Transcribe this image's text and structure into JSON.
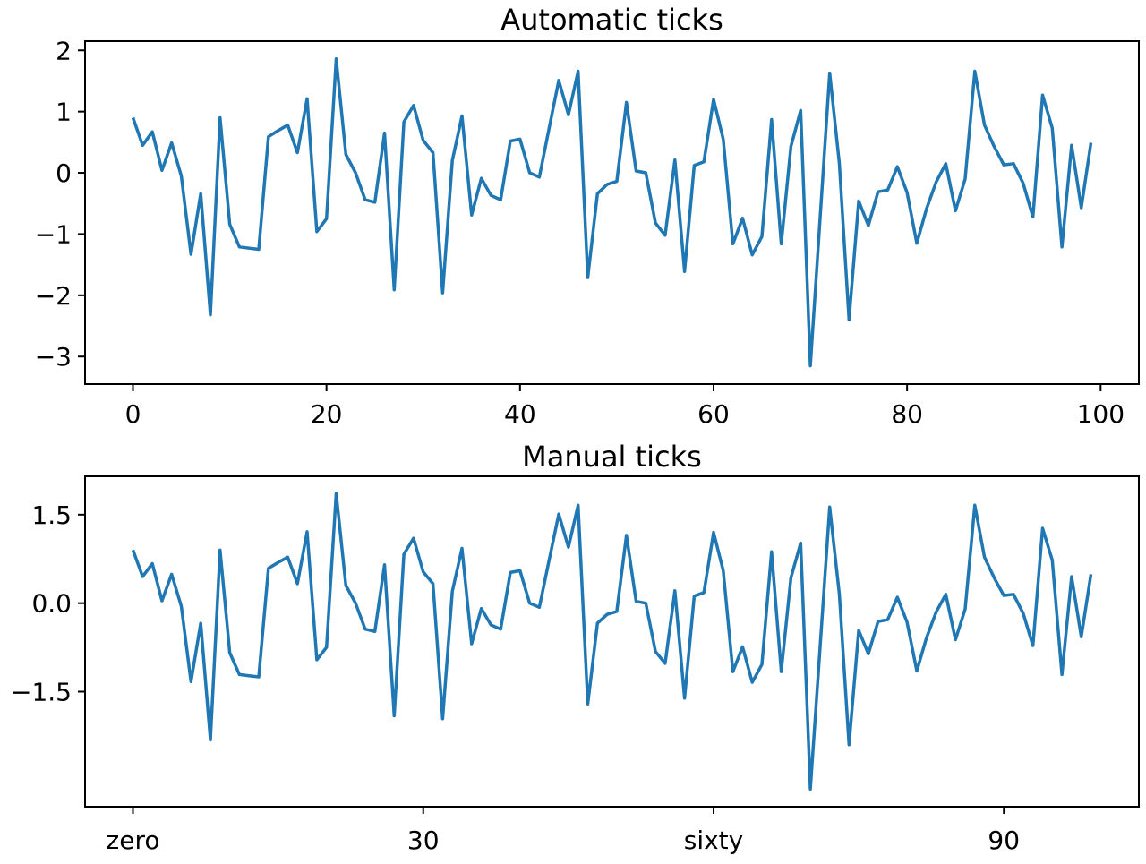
{
  "figure": {
    "background": "#ffffff",
    "text_color": "#000000",
    "line_color": "#1f77b4"
  },
  "chart_data": [
    {
      "type": "line",
      "title": "Automatic ticks",
      "xlabel": "",
      "ylabel": "",
      "grid": false,
      "legend": "none",
      "line_color": "#1f77b4",
      "x_start": 0,
      "x_step": 1,
      "xlim": [
        -4.95,
        103.95
      ],
      "ylim": [
        -3.45,
        2.15
      ],
      "xticks": [
        {
          "value": 0,
          "label": "0"
        },
        {
          "value": 20,
          "label": "20"
        },
        {
          "value": 40,
          "label": "40"
        },
        {
          "value": 60,
          "label": "60"
        },
        {
          "value": 80,
          "label": "80"
        },
        {
          "value": 100,
          "label": "100"
        }
      ],
      "yticks": [
        {
          "value": 2,
          "label": "2"
        },
        {
          "value": 1,
          "label": "1"
        },
        {
          "value": 0,
          "label": "0"
        },
        {
          "value": -1,
          "label": "−1"
        },
        {
          "value": -2,
          "label": "−2"
        },
        {
          "value": -3,
          "label": "−3"
        }
      ],
      "values": [
        0.9,
        0.45,
        0.67,
        0.04,
        0.49,
        -0.05,
        -1.33,
        -0.34,
        -2.32,
        0.9,
        -0.84,
        -1.21,
        -1.23,
        -1.25,
        0.59,
        0.69,
        0.78,
        0.33,
        1.21,
        -0.96,
        -0.75,
        1.86,
        0.3,
        0.0,
        -0.44,
        -0.48,
        0.65,
        -1.91,
        0.83,
        1.1,
        0.53,
        0.33,
        -1.96,
        0.2,
        0.93,
        -0.69,
        -0.09,
        -0.37,
        -0.44,
        0.52,
        0.55,
        0.0,
        -0.07,
        0.72,
        1.51,
        0.95,
        1.66,
        -1.71,
        -0.34,
        -0.19,
        -0.14,
        1.15,
        0.03,
        0.0,
        -0.82,
        -1.02,
        0.21,
        -1.61,
        0.12,
        0.18,
        1.2,
        0.55,
        -1.16,
        -0.74,
        -1.34,
        -1.04,
        0.87,
        -1.16,
        0.43,
        1.02,
        -3.15,
        -0.76,
        1.63,
        0.15,
        -2.4,
        -0.46,
        -0.86,
        -0.31,
        -0.28,
        0.1,
        -0.32,
        -1.15,
        -0.59,
        -0.15,
        0.15,
        -0.62,
        -0.1,
        1.66,
        0.78,
        0.43,
        0.13,
        0.15,
        -0.17,
        -0.72,
        1.27,
        0.73,
        -1.21,
        0.45,
        -0.57,
        0.49
      ]
    },
    {
      "type": "line",
      "title": "Manual ticks",
      "xlabel": "",
      "ylabel": "",
      "grid": false,
      "legend": "none",
      "line_color": "#1f77b4",
      "x_start": 0,
      "x_step": 1,
      "xlim": [
        -4.95,
        103.95
      ],
      "ylim": [
        -3.45,
        2.15
      ],
      "xticks": [
        {
          "value": 0,
          "label": "zero"
        },
        {
          "value": 30,
          "label": "30"
        },
        {
          "value": 60,
          "label": "sixty"
        },
        {
          "value": 90,
          "label": "90"
        }
      ],
      "yticks": [
        {
          "value": 1.5,
          "label": "1.5"
        },
        {
          "value": 0.0,
          "label": "0.0"
        },
        {
          "value": -1.5,
          "label": "−1.5"
        }
      ],
      "values": [
        0.9,
        0.45,
        0.67,
        0.04,
        0.49,
        -0.05,
        -1.33,
        -0.34,
        -2.32,
        0.9,
        -0.84,
        -1.21,
        -1.23,
        -1.25,
        0.59,
        0.69,
        0.78,
        0.33,
        1.21,
        -0.96,
        -0.75,
        1.86,
        0.3,
        0.0,
        -0.44,
        -0.48,
        0.65,
        -1.91,
        0.83,
        1.1,
        0.53,
        0.33,
        -1.96,
        0.2,
        0.93,
        -0.69,
        -0.09,
        -0.37,
        -0.44,
        0.52,
        0.55,
        0.0,
        -0.07,
        0.72,
        1.51,
        0.95,
        1.66,
        -1.71,
        -0.34,
        -0.19,
        -0.14,
        1.15,
        0.03,
        0.0,
        -0.82,
        -1.02,
        0.21,
        -1.61,
        0.12,
        0.18,
        1.2,
        0.55,
        -1.16,
        -0.74,
        -1.34,
        -1.04,
        0.87,
        -1.16,
        0.43,
        1.02,
        -3.15,
        -0.76,
        1.63,
        0.15,
        -2.4,
        -0.46,
        -0.86,
        -0.31,
        -0.28,
        0.1,
        -0.32,
        -1.15,
        -0.59,
        -0.15,
        0.15,
        -0.62,
        -0.1,
        1.66,
        0.78,
        0.43,
        0.13,
        0.15,
        -0.17,
        -0.72,
        1.27,
        0.73,
        -1.21,
        0.45,
        -0.57,
        0.49
      ]
    }
  ]
}
